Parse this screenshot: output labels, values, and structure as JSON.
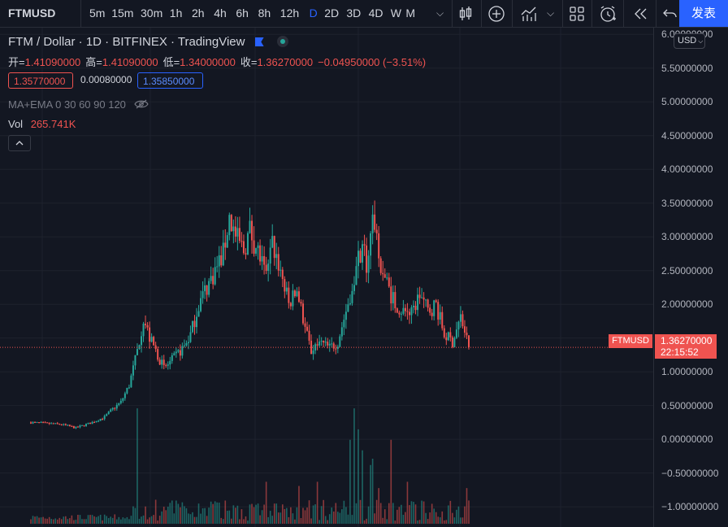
{
  "toolbar": {
    "symbol": "FTMUSD",
    "intervals": [
      "5m",
      "15m",
      "30m",
      "1h",
      "2h",
      "4h",
      "6h",
      "8h",
      "12h",
      "D",
      "2D",
      "3D",
      "4D",
      "W",
      "M"
    ],
    "active_interval": "D",
    "publish_label": "发表"
  },
  "legend": {
    "title": "FTM / Dollar · 1D · BITFINEX · TradingView",
    "ohlc": [
      {
        "label": "开=",
        "value": "1.41090000"
      },
      {
        "label": "高=",
        "value": "1.41090000"
      },
      {
        "label": "低=",
        "value": "1.34000000"
      },
      {
        "label": "收=",
        "value": "1.36270000"
      }
    ],
    "change": "−0.04950000 (−3.51%)",
    "bid": "1.35770000",
    "spread": "0.00080000",
    "ask": "1.35850000",
    "indicator": "MA+EMA 0 30 60 90 120",
    "vol_label": "Vol",
    "vol_value": "265.741K"
  },
  "price_axis": {
    "currency": "USD",
    "ticks": [
      "6.00000000",
      "5.50000000",
      "5.00000000",
      "4.50000000",
      "4.00000000",
      "3.50000000",
      "3.00000000",
      "2.50000000",
      "2.00000000",
      "1.50000000",
      "1.00000000",
      "0.50000000",
      "0.00000000",
      "−0.50000000",
      "−1.00000000"
    ],
    "last_symbol": "FTMUSD",
    "last_price": "1.36270000",
    "countdown": "22:15:52"
  },
  "colors": {
    "up": "#26a69a",
    "down": "#ef5350",
    "background": "#131722",
    "accent": "#2962ff"
  },
  "chart_data": {
    "type": "candlestick",
    "series": "FTM/USD daily",
    "price_range": [
      -1.3,
      6.1
    ],
    "last": 1.3627,
    "price_path": [
      [
        0,
        0.25
      ],
      [
        15,
        0.22
      ],
      [
        22,
        0.17
      ],
      [
        30,
        0.25
      ],
      [
        36,
        0.33
      ],
      [
        40,
        0.45
      ],
      [
        44,
        0.55
      ],
      [
        48,
        0.8
      ],
      [
        52,
        1.3
      ],
      [
        55,
        1.8
      ],
      [
        58,
        1.5
      ],
      [
        62,
        1.25
      ],
      [
        65,
        1.05
      ],
      [
        70,
        1.2
      ],
      [
        75,
        1.38
      ],
      [
        78,
        1.55
      ],
      [
        82,
        2.0
      ],
      [
        85,
        2.2
      ],
      [
        90,
        2.5
      ],
      [
        94,
        2.75
      ],
      [
        97,
        3.3
      ],
      [
        100,
        3.0
      ],
      [
        104,
        2.8
      ],
      [
        107,
        3.1
      ],
      [
        112,
        2.7
      ],
      [
        115,
        2.35
      ],
      [
        118,
        2.9
      ],
      [
        122,
        2.5
      ],
      [
        126,
        2.0
      ],
      [
        130,
        2.2
      ],
      [
        134,
        1.65
      ],
      [
        137,
        1.3
      ],
      [
        140,
        1.45
      ],
      [
        146,
        1.35
      ],
      [
        150,
        1.45
      ],
      [
        154,
        1.9
      ],
      [
        158,
        2.4
      ],
      [
        162,
        2.9
      ],
      [
        164,
        2.6
      ],
      [
        166,
        3.0
      ],
      [
        168,
        3.25
      ],
      [
        170,
        2.7
      ],
      [
        174,
        2.3
      ],
      [
        178,
        2.0
      ],
      [
        182,
        1.9
      ],
      [
        186,
        1.85
      ],
      [
        190,
        2.15
      ],
      [
        194,
        1.9
      ],
      [
        198,
        2.0
      ],
      [
        202,
        1.55
      ],
      [
        206,
        1.45
      ],
      [
        210,
        1.8
      ],
      [
        212,
        1.6
      ],
      [
        214,
        1.36
      ]
    ],
    "volume_spikes": [
      [
        52,
        0.55
      ],
      [
        115,
        0.2
      ],
      [
        131,
        0.18
      ],
      [
        140,
        0.2
      ],
      [
        156,
        0.4
      ],
      [
        158,
        0.55
      ],
      [
        160,
        0.45
      ],
      [
        162,
        0.35
      ],
      [
        166,
        0.28
      ],
      [
        167,
        0.31
      ],
      [
        170,
        0.17
      ],
      [
        176,
        0.4
      ],
      [
        184,
        0.2
      ],
      [
        213,
        0.17
      ]
    ]
  }
}
